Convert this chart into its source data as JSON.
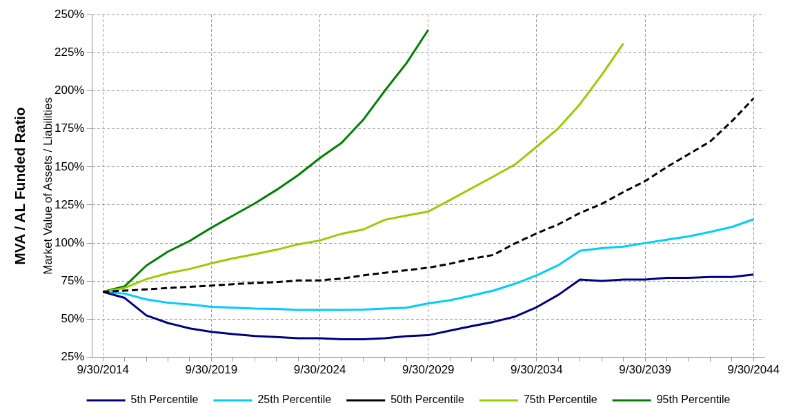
{
  "chart_data": {
    "type": "line",
    "ylabel": "MVA / AL Funded Ratio",
    "annotations": [
      "Market Value of Assets / Liabilities"
    ],
    "categories": [
      "9/30/2014",
      null,
      null,
      null,
      null,
      "9/30/2019",
      null,
      null,
      null,
      null,
      "9/30/2024",
      null,
      null,
      null,
      null,
      "9/30/2029",
      null,
      null,
      null,
      null,
      "9/30/2034",
      null,
      null,
      null,
      null,
      "9/30/2039",
      null,
      null,
      null,
      null,
      "9/30/2044"
    ],
    "series": [
      {
        "name": "5th Percentile",
        "color": "#000080",
        "line_style": "solid",
        "values": [
          68,
          64,
          52.5,
          47.5,
          44,
          41.7,
          40.2,
          39,
          38.3,
          37.5,
          37.5,
          36.8,
          36.8,
          37.5,
          38.9,
          39.5,
          42.5,
          45.4,
          48.2,
          51.7,
          57.9,
          66,
          76,
          75.1,
          76,
          76,
          77.2,
          77.2,
          77.7,
          77.7,
          79.3
        ]
      },
      {
        "name": "25th Percentile",
        "color": "#00ccff",
        "line_style": "solid",
        "values": [
          68,
          66.8,
          63,
          60.8,
          59.7,
          58.1,
          57.6,
          57,
          56.8,
          56.1,
          56.1,
          56.1,
          56.3,
          57,
          57.6,
          60.4,
          62.4,
          65.5,
          68.8,
          73.3,
          78.8,
          85.5,
          95,
          96.7,
          97.7,
          100,
          102.2,
          104.4,
          107.3,
          110.6,
          115.6
        ]
      },
      {
        "name": "50th Percentile",
        "color": "#000000",
        "line_style": "dashed",
        "values": [
          68,
          68.8,
          69.6,
          70.5,
          71.3,
          72.1,
          73,
          73.8,
          74.3,
          75.5,
          75.5,
          76.7,
          78.8,
          80.5,
          82.2,
          83.8,
          86.4,
          89.7,
          92.2,
          99.8,
          106.4,
          112.3,
          119.8,
          125.7,
          133.5,
          140.7,
          149.9,
          158.3,
          166.7,
          180,
          195
        ]
      },
      {
        "name": "75th Percentile",
        "color": "#99cc00",
        "line_style": "solid",
        "values": [
          68,
          70.5,
          76.3,
          80.2,
          83,
          86.7,
          90,
          92.7,
          95.6,
          99.2,
          101.7,
          106.1,
          108.9,
          115.3,
          118.1,
          120.7,
          128.2,
          136,
          143.7,
          151.6,
          163.3,
          175.4,
          191.3,
          210.5,
          231.1,
          null,
          null,
          null,
          null,
          null,
          null
        ]
      },
      {
        "name": "95th Percentile",
        "color": "#008000",
        "line_style": "solid",
        "values": [
          68,
          71.6,
          85.2,
          94.4,
          101.4,
          110.1,
          118.1,
          126,
          134.9,
          144.6,
          155.8,
          165.8,
          180.9,
          200.1,
          218.2,
          240,
          null,
          null,
          null,
          null,
          null,
          null,
          null,
          null,
          null,
          null,
          null,
          null,
          null,
          null,
          null
        ]
      }
    ],
    "ylim": [
      25,
      250
    ],
    "yticks": [
      {
        "value": 25,
        "label": "25%"
      },
      {
        "value": 50,
        "label": "50%"
      },
      {
        "value": 75,
        "label": "75%"
      },
      {
        "value": 100,
        "label": "100%"
      },
      {
        "value": 125,
        "label": "125%"
      },
      {
        "value": 150,
        "label": "150%"
      },
      {
        "value": 175,
        "label": "175%"
      },
      {
        "value": 200,
        "label": "200%"
      },
      {
        "value": 225,
        "label": "225%"
      },
      {
        "value": 250,
        "label": "250%"
      }
    ],
    "grid": true,
    "legend": "bottom",
    "marker": "none"
  }
}
